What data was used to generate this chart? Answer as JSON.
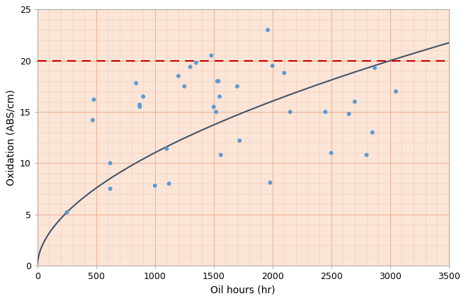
{
  "scatter_x": [
    250,
    470,
    480,
    620,
    620,
    840,
    870,
    870,
    900,
    1000,
    1100,
    1120,
    1200,
    1250,
    1300,
    1350,
    1480,
    1500,
    1520,
    1530,
    1540,
    1550,
    1560,
    1700,
    1720,
    1960,
    1980,
    2000,
    2100,
    2150,
    2450,
    2500,
    2650,
    2700,
    2800,
    2850,
    2870,
    3050
  ],
  "scatter_y": [
    5.2,
    14.2,
    16.2,
    7.5,
    10.0,
    17.8,
    15.7,
    15.5,
    16.5,
    7.8,
    11.4,
    8.0,
    18.5,
    17.5,
    19.4,
    19.8,
    20.5,
    15.5,
    15.0,
    18.0,
    18.0,
    16.5,
    10.8,
    17.5,
    12.2,
    23.0,
    8.1,
    19.5,
    18.8,
    15.0,
    15.0,
    11.0,
    14.8,
    16.0,
    10.8,
    13.0,
    19.3,
    17.0
  ],
  "scatter_color": "#5b9bd5",
  "scatter_size": 18,
  "hline_y": 20,
  "hline_color": "#c00000",
  "hline_style": "--",
  "hline_lw": 1.5,
  "curve_color": "#44546a",
  "curve_lw": 1.5,
  "xlabel": "Oil hours (hr)",
  "ylabel": "Oxidation (ABS/cm)",
  "xlim": [
    0,
    3500
  ],
  "ylim": [
    0,
    25
  ],
  "xticks": [
    0,
    500,
    1000,
    1500,
    2000,
    2500,
    3000,
    3500
  ],
  "yticks": [
    0,
    5,
    10,
    15,
    20,
    25
  ],
  "background_color": "#fbe5d6",
  "grid_major_color": "#f2b49a",
  "grid_minor_color": "#f7cfc0",
  "tick_fontsize": 9,
  "label_fontsize": 10,
  "fig_bg": "#ffffff"
}
